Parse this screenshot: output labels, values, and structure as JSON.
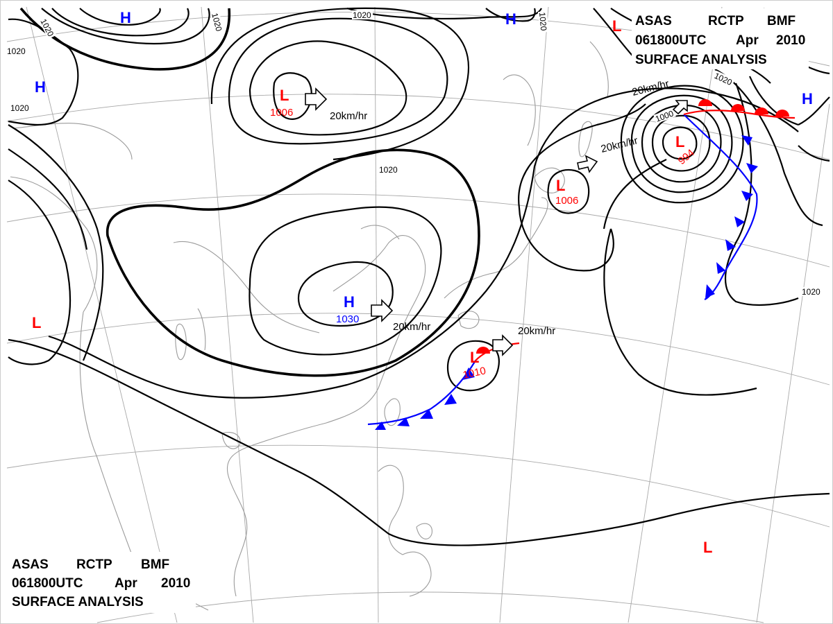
{
  "header_top": {
    "line1": [
      "ASAS",
      "RCTP",
      "BMF"
    ],
    "line2": [
      "061800UTC",
      "Apr",
      "2010"
    ],
    "line3": "SURFACE ANALYSIS"
  },
  "header_bottom": {
    "line1": [
      "ASAS",
      "RCTP",
      "BMF"
    ],
    "line2": [
      "061800UTC",
      "Apr",
      "2010"
    ],
    "line3": "SURFACE ANALYSIS"
  },
  "colors": {
    "low": "#ff0000",
    "high": "#0000ff",
    "isobar": "#000000",
    "grid": "#a8a8a8",
    "coast": "#9a9a9a",
    "cold_front": "#0000ff",
    "warm_front": "#ff0000"
  },
  "pressure_systems": [
    {
      "symbol": "H",
      "pressure": ""
    },
    {
      "symbol": "H",
      "pressure": ""
    },
    {
      "symbol": "H",
      "pressure": ""
    },
    {
      "symbol": "H",
      "pressure": "1030"
    },
    {
      "symbol": "H",
      "pressure": ""
    },
    {
      "symbol": "L",
      "pressure": "1006"
    },
    {
      "symbol": "L",
      "pressure": "1006"
    },
    {
      "symbol": "L",
      "pressure": "994"
    },
    {
      "symbol": "L",
      "pressure": "1010"
    },
    {
      "symbol": "L",
      "pressure": ""
    },
    {
      "symbol": "L",
      "pressure": ""
    },
    {
      "symbol": "L",
      "pressure": ""
    }
  ],
  "motion_labels": [
    "20km/hr",
    "20km/hr",
    "20km/hr",
    "20km/hr",
    "20km/hr"
  ],
  "isobar_labels": [
    "1020",
    "1020",
    "1020",
    "1020",
    "1020",
    "1020",
    "1020",
    "1020",
    "1020",
    "1000"
  ],
  "fronts": [
    {
      "type": "cold",
      "icon": "cold-front-triangles"
    },
    {
      "type": "warm",
      "icon": "warm-front-semicircles"
    }
  ]
}
